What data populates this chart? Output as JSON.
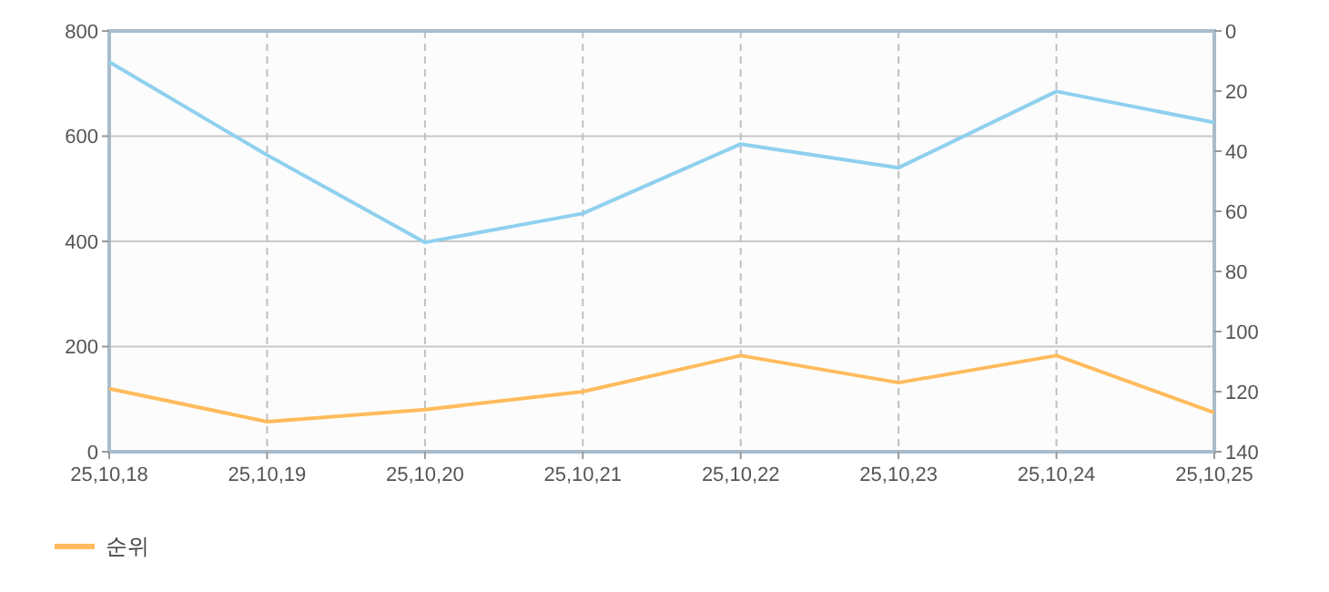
{
  "chart_data": {
    "type": "line",
    "categories": [
      "25,10,18",
      "25,10,19",
      "25,10,20",
      "25,10,21",
      "25,10,22",
      "25,10,23",
      "25,10,24",
      "25,10,25"
    ],
    "series": [
      {
        "color": "#8fd0ee",
        "values": [
          741,
          564,
          398,
          453,
          585,
          540,
          685,
          626
        ]
      },
      {
        "name": "순위",
        "color": "#ffbb5c",
        "axis": "y2",
        "values": [
          119,
          130,
          126,
          120,
          108,
          117,
          108,
          127
        ]
      }
    ],
    "ylim": [
      0,
      800
    ],
    "yticks": [
      0,
      200,
      400,
      600,
      800
    ],
    "y2lim": [
      140,
      0
    ],
    "y2ticks": [
      0,
      20,
      40,
      60,
      80,
      100,
      120,
      140
    ],
    "grid": true,
    "legend": "bottom left",
    "marker": "none",
    "line_style": "solid"
  }
}
